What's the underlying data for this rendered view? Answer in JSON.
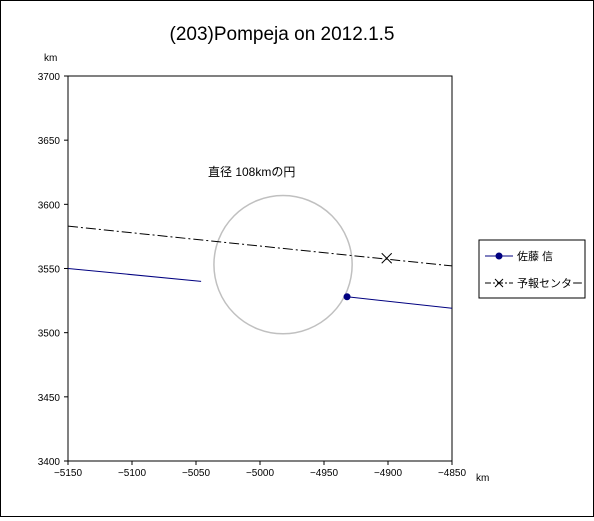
{
  "chart_data": {
    "type": "line",
    "title": "(203)Pompeja on 2012.1.5",
    "xlabel": "km",
    "ylabel": "km",
    "xlim": [
      -5150,
      -4850
    ],
    "ylim": [
      3400,
      3700
    ],
    "xticks": [
      -5150,
      -5100,
      -5050,
      -5000,
      -4950,
      -4900,
      -4850
    ],
    "yticks": [
      3400,
      3450,
      3500,
      3550,
      3600,
      3650,
      3700
    ],
    "grid": false,
    "legend_position": "right",
    "annotation": "直径 108kmの円",
    "circle": {
      "center": [
        -4982,
        3553
      ],
      "diameter": 108,
      "color": "#c0c0c0"
    },
    "series": [
      {
        "name": "佐藤 信",
        "color": "#000080",
        "style": "solid",
        "marker": "circle",
        "segments": [
          [
            [
              -5150,
              3550
            ],
            [
              -5046,
              3540
            ]
          ],
          [
            [
              -4932,
              3528
            ],
            [
              -4850,
              3519
            ]
          ]
        ],
        "points": [
          [
            -4932,
            3528
          ]
        ]
      },
      {
        "name": "予報センター",
        "color": "#000000",
        "style": "dashdot",
        "marker": "x",
        "segments": [
          [
            [
              -5150,
              3583
            ],
            [
              -4850,
              3552
            ]
          ]
        ],
        "points": [
          [
            -4901,
            3558
          ]
        ]
      }
    ]
  }
}
